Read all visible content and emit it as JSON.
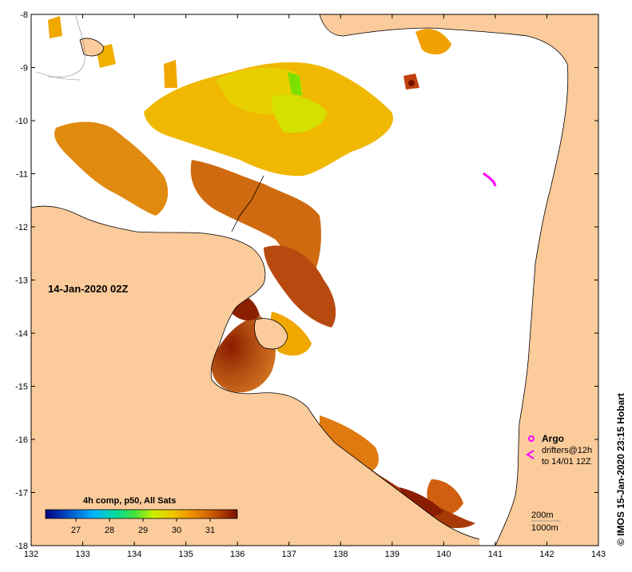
{
  "map": {
    "timestamp_label": "14-Jan-2020 02Z",
    "credit": "© IMOS 15-Jan-2020 23:15 Hobart",
    "longitude_ticks": [
      "132",
      "133",
      "134",
      "135",
      "136",
      "137",
      "138",
      "139",
      "140",
      "141",
      "142",
      "143"
    ],
    "latitude_ticks": [
      "-8",
      "-9",
      "-10",
      "-11",
      "-12",
      "-13",
      "-14",
      "-15",
      "-16",
      "-17",
      "-18"
    ],
    "legend": {
      "argo_label": "Argo",
      "drifters_line1": "drifters@12h",
      "drifters_line2": "to 14/01 12Z",
      "argo_symbol_color": "#ff00ff",
      "drifter_symbol_color": "#ff00ff"
    },
    "isobaths": {
      "label_200": "200m",
      "label_1000": "1000m"
    },
    "colorbar": {
      "title": "4h comp, p50, All Sats",
      "ticks": [
        "27",
        "28",
        "29",
        "30",
        "31"
      ],
      "colors": [
        "#00007f",
        "#0050c8",
        "#00b4ff",
        "#00dca0",
        "#40e040",
        "#c8f000",
        "#f0c800",
        "#f09000",
        "#d06000",
        "#a03000",
        "#7a1000"
      ]
    },
    "colors": {
      "land": "#fbcb9b",
      "no_data": "#ffffff",
      "coastline": "#000000"
    }
  }
}
